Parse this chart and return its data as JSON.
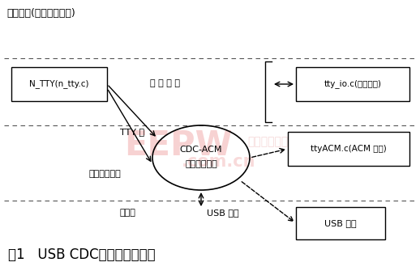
{
  "bg_color": "#ffffff",
  "fig_width": 5.18,
  "fig_height": 3.4,
  "title": "图1   USB CDC类设备通信流程",
  "app_label": "应用程序(系统调用接口)",
  "box_ntty": "N_TTY(n_tty.c)",
  "box_ttyio": "tty_io.c(核心模块)",
  "box_ttyacm": "ttyACM.c(ACM 模块)",
  "box_usb": "USB 核心",
  "circle_label1": "CDC-ACM",
  "circle_label2": "设备驱动程序",
  "label_line_rule": "线 路 规 程",
  "label_tty_layer": "TTY 层",
  "label_bottom_driver": "底层驱动程序",
  "label_physical": "物理层",
  "label_usb_interface": "USB 接口",
  "dash_line_color": "#555555",
  "box_color": "#000000",
  "text_color": "#000000"
}
